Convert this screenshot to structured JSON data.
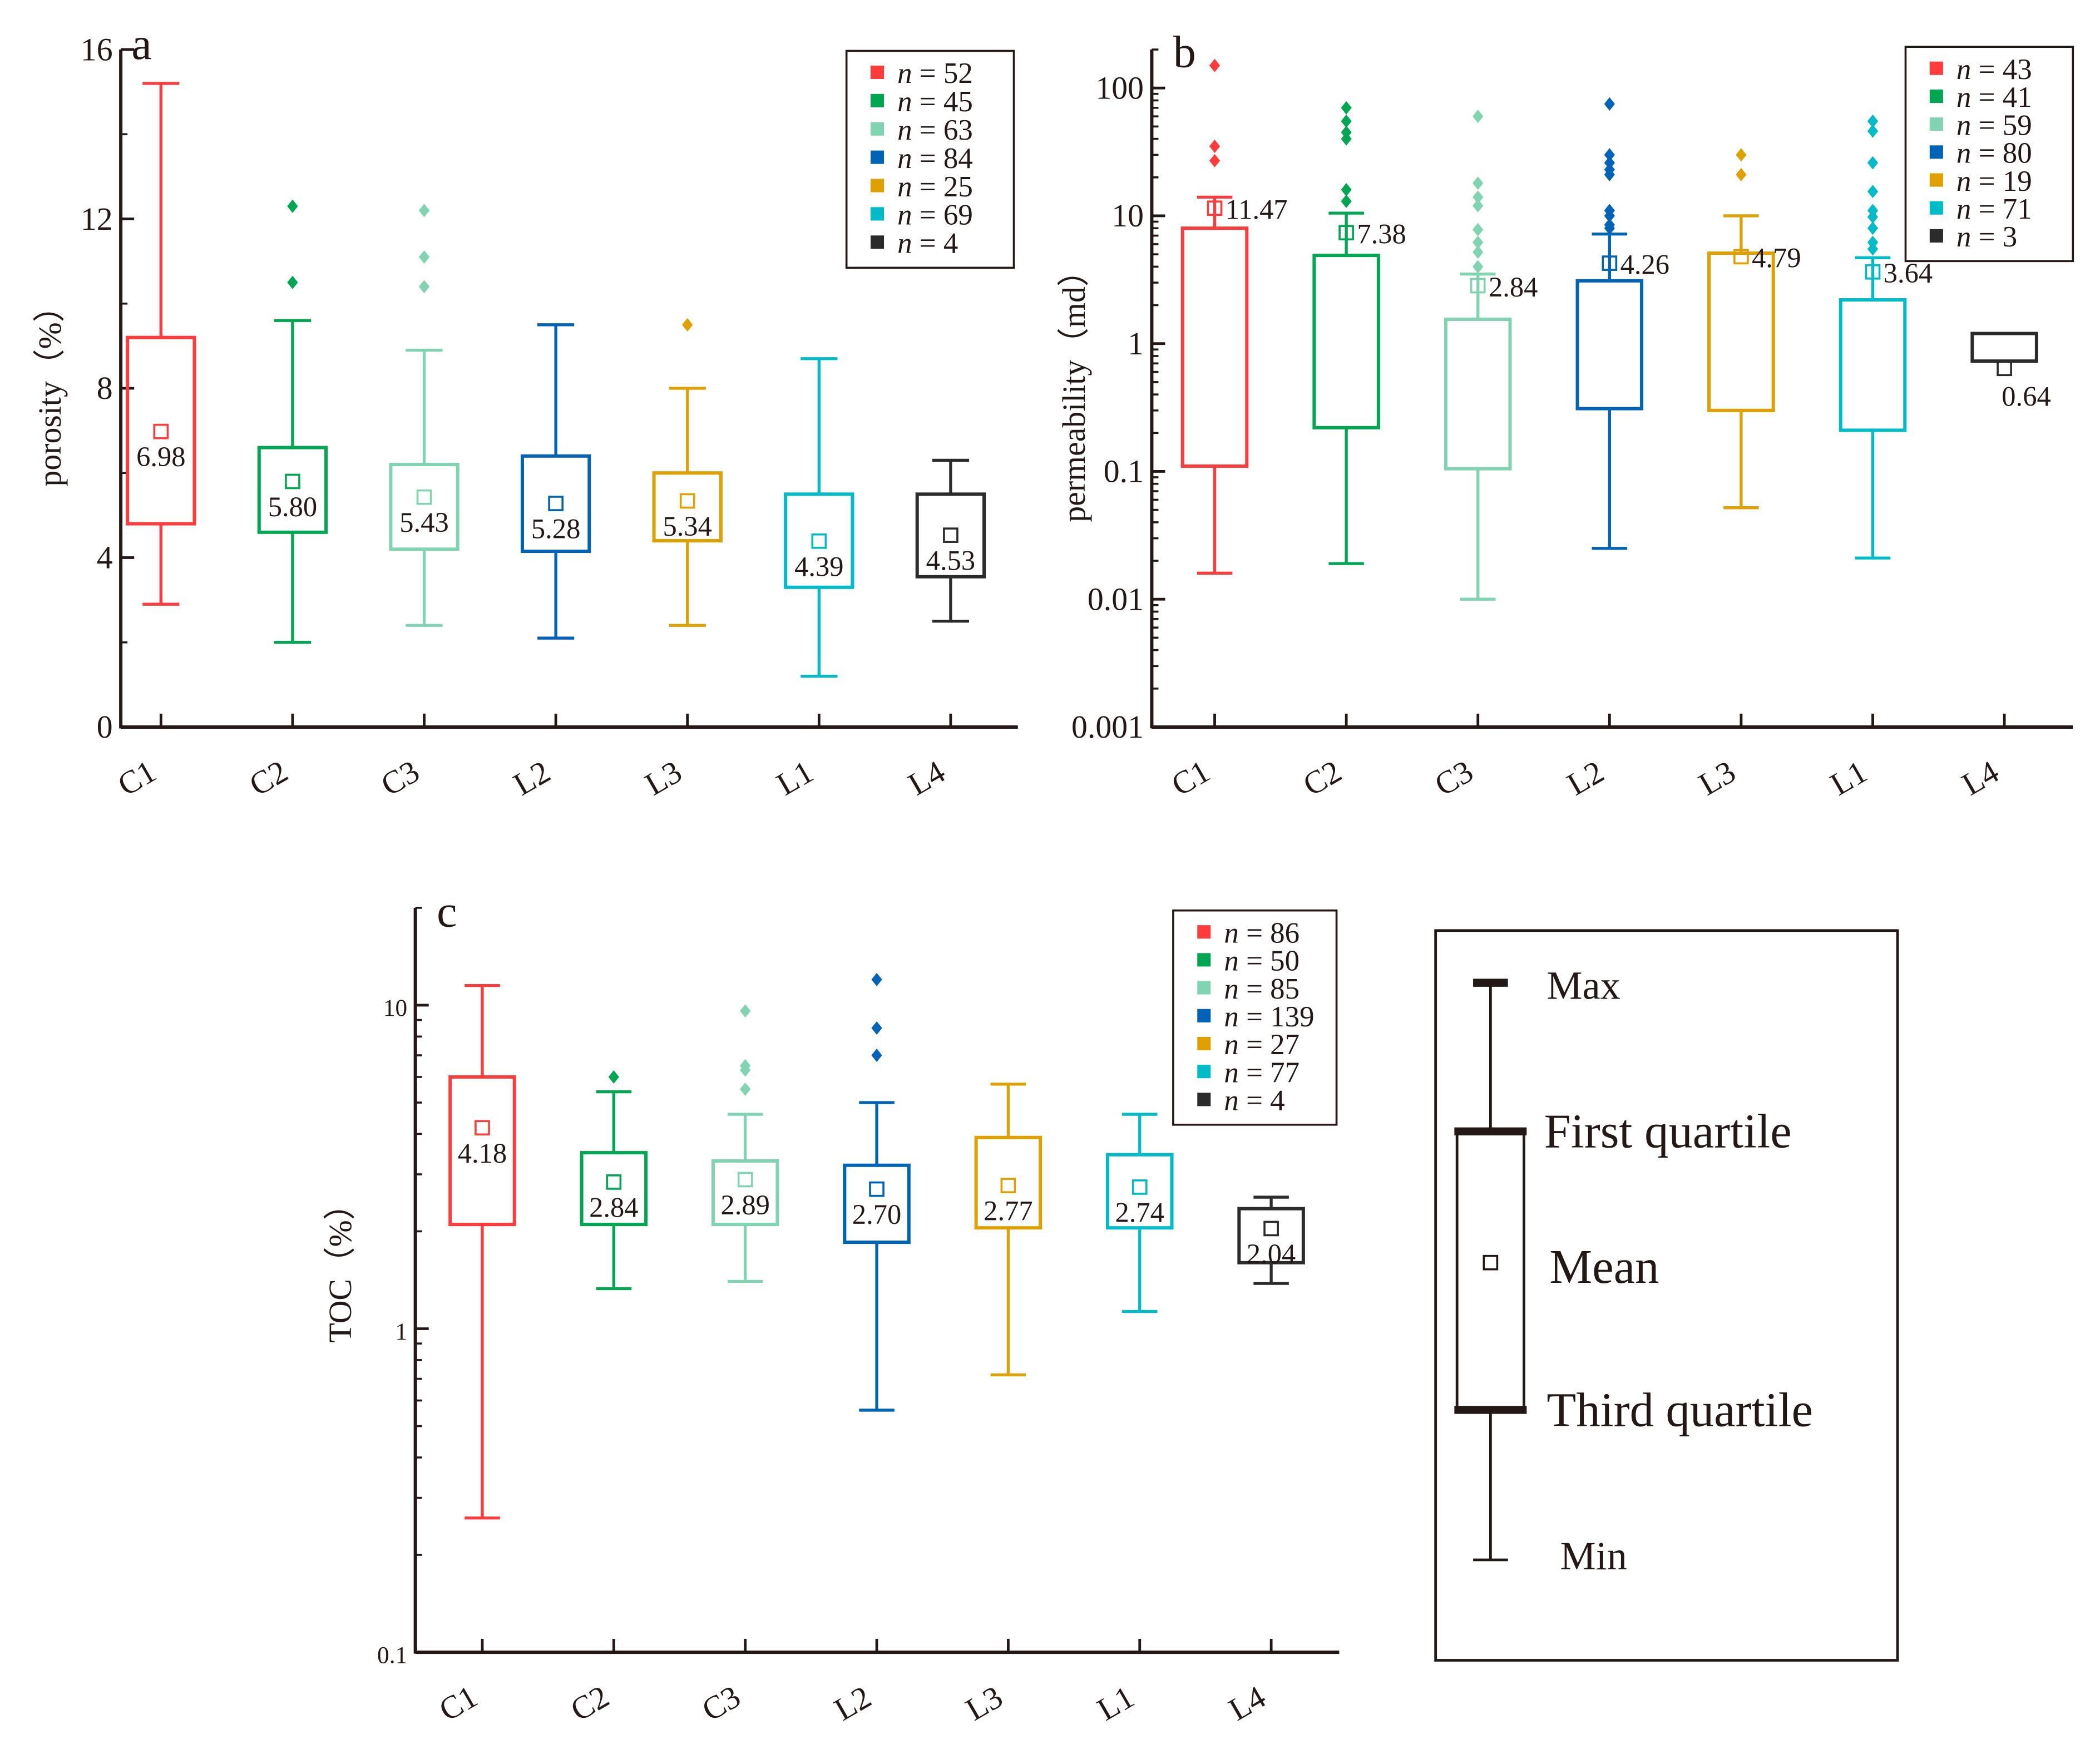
{
  "colors": {
    "C1": "#ff3b3b",
    "C2": "#00a651",
    "C3": "#80d4b2",
    "L2": "#0063b8",
    "L3": "#e0a100",
    "L1": "#00bcc9",
    "L4": "#2b2b2b"
  },
  "chart_data": [
    {
      "type": "box",
      "panel_label": "a",
      "ylabel": "porosity（%）",
      "yscale": "linear",
      "ylim": [
        0,
        16
      ],
      "yticks": [
        "0",
        "4",
        "8",
        "12",
        "16"
      ],
      "categories": [
        "C1",
        "C2",
        "C3",
        "L2",
        "L3",
        "L1",
        "L4"
      ],
      "legend": [
        "n = 52",
        "n = 45",
        "n = 63",
        "n = 84",
        "n = 25",
        "n = 69",
        "n = 4"
      ],
      "legend_position": "top-right",
      "boxes": [
        {
          "min": 2.9,
          "q_low": 4.8,
          "q_high": 9.2,
          "max": 15.2,
          "mean": 6.98,
          "mean_label": "6.98",
          "outliers": []
        },
        {
          "min": 2.0,
          "q_low": 4.6,
          "q_high": 6.6,
          "max": 9.6,
          "mean": 5.8,
          "mean_label": "5.80",
          "outliers": [
            12.3,
            10.5
          ]
        },
        {
          "min": 2.4,
          "q_low": 4.2,
          "q_high": 6.2,
          "max": 8.9,
          "mean": 5.43,
          "mean_label": "5.43",
          "outliers": [
            12.2,
            11.1,
            10.4
          ]
        },
        {
          "min": 2.1,
          "q_low": 4.15,
          "q_high": 6.4,
          "max": 9.5,
          "mean": 5.28,
          "mean_label": "5.28",
          "outliers": []
        },
        {
          "min": 2.4,
          "q_low": 4.4,
          "q_high": 6.0,
          "max": 8.0,
          "mean": 5.34,
          "mean_label": "5.34",
          "outliers": [
            9.5
          ]
        },
        {
          "min": 1.2,
          "q_low": 3.3,
          "q_high": 5.5,
          "max": 8.7,
          "mean": 4.39,
          "mean_label": "4.39",
          "outliers": []
        },
        {
          "min": 2.5,
          "q_low": 3.55,
          "q_high": 5.5,
          "max": 6.3,
          "mean": 4.53,
          "mean_label": "4.53",
          "outliers": []
        }
      ]
    },
    {
      "type": "box",
      "panel_label": "b",
      "ylabel": "permeability（md）",
      "yscale": "log",
      "ylim": [
        0.001,
        200
      ],
      "yticks": [
        "0.001",
        "0.01",
        "0.1",
        "1",
        "10",
        "100"
      ],
      "categories": [
        "C1",
        "C2",
        "C3",
        "L2",
        "L3",
        "L1",
        "L4"
      ],
      "legend": [
        "n = 43",
        "n = 41",
        "n = 59",
        "n = 80",
        "n = 19",
        "n = 71",
        "n = 3"
      ],
      "legend_position": "top-right",
      "boxes": [
        {
          "min": 0.016,
          "q_low": 0.11,
          "q_high": 8,
          "max": 14,
          "mean": 11.47,
          "mean_label": "11.47",
          "outliers": [
            150,
            35,
            27
          ]
        },
        {
          "min": 0.019,
          "q_low": 0.22,
          "q_high": 4.9,
          "max": 10.5,
          "mean": 7.38,
          "mean_label": "7.38",
          "outliers": [
            70,
            55,
            45,
            40,
            16,
            13
          ]
        },
        {
          "min": 0.01,
          "q_low": 0.105,
          "q_high": 1.55,
          "max": 3.5,
          "mean": 2.84,
          "mean_label": "2.84",
          "outliers": [
            60,
            18,
            14,
            12,
            7.8,
            6.2,
            5.2,
            4
          ]
        },
        {
          "min": 0.025,
          "q_low": 0.31,
          "q_high": 3.1,
          "max": 7.2,
          "mean": 4.26,
          "mean_label": "4.26",
          "outliers": [
            75,
            30,
            26,
            23,
            21,
            11,
            10,
            8.5,
            8
          ]
        },
        {
          "min": 0.052,
          "q_low": 0.3,
          "q_high": 5.1,
          "max": 10,
          "mean": 4.79,
          "mean_label": "4.79",
          "outliers": [
            30,
            21
          ]
        },
        {
          "min": 0.021,
          "q_low": 0.21,
          "q_high": 2.2,
          "max": 4.7,
          "mean": 3.64,
          "mean_label": "3.64",
          "outliers": [
            55,
            46,
            26,
            15.5,
            11,
            9.8,
            8,
            6.2,
            5.5
          ]
        },
        {
          "min": null,
          "q_low": 0.73,
          "q_high": 1.2,
          "max": null,
          "mean": 0.64,
          "mean_label": "0.64",
          "outliers": []
        }
      ]
    },
    {
      "type": "box",
      "panel_label": "c",
      "ylabel": "TOC（%）",
      "yscale": "log",
      "ylim": [
        0.1,
        20
      ],
      "yticks": [
        "0.1",
        "1",
        "10"
      ],
      "categories": [
        "C1",
        "C2",
        "C3",
        "L2",
        "L3",
        "L1",
        "L4"
      ],
      "legend": [
        "n = 86",
        "n = 50",
        "n = 85",
        "n = 139",
        "n = 27",
        "n = 77",
        "n = 4"
      ],
      "legend_position": "top-right",
      "boxes": [
        {
          "min": 0.26,
          "q_low": 2.1,
          "q_high": 6.0,
          "max": 11.5,
          "mean": 4.18,
          "mean_label": "4.18",
          "outliers": []
        },
        {
          "min": 1.33,
          "q_low": 2.1,
          "q_high": 3.5,
          "max": 5.4,
          "mean": 2.84,
          "mean_label": "2.84",
          "outliers": [
            6.0
          ]
        },
        {
          "min": 1.4,
          "q_low": 2.1,
          "q_high": 3.3,
          "max": 4.6,
          "mean": 2.89,
          "mean_label": "2.89",
          "outliers": [
            9.6,
            6.5,
            6.3,
            5.5
          ]
        },
        {
          "min": 0.56,
          "q_low": 1.85,
          "q_high": 3.2,
          "max": 5.0,
          "mean": 2.7,
          "mean_label": "2.70",
          "outliers": [
            12,
            8.5,
            7
          ]
        },
        {
          "min": 0.72,
          "q_low": 2.05,
          "q_high": 3.9,
          "max": 5.7,
          "mean": 2.77,
          "mean_label": "2.77",
          "outliers": []
        },
        {
          "min": 1.13,
          "q_low": 2.05,
          "q_high": 3.45,
          "max": 4.6,
          "mean": 2.74,
          "mean_label": "2.74",
          "outliers": []
        },
        {
          "min": 1.38,
          "q_low": 1.6,
          "q_high": 2.35,
          "max": 2.55,
          "mean": 2.04,
          "mean_label": "2.04",
          "outliers": []
        }
      ]
    }
  ],
  "key": {
    "max": "Max",
    "first_quartile": "First quartile",
    "mean": "Mean",
    "third_quartile": "Third quartile",
    "min": "Min"
  }
}
